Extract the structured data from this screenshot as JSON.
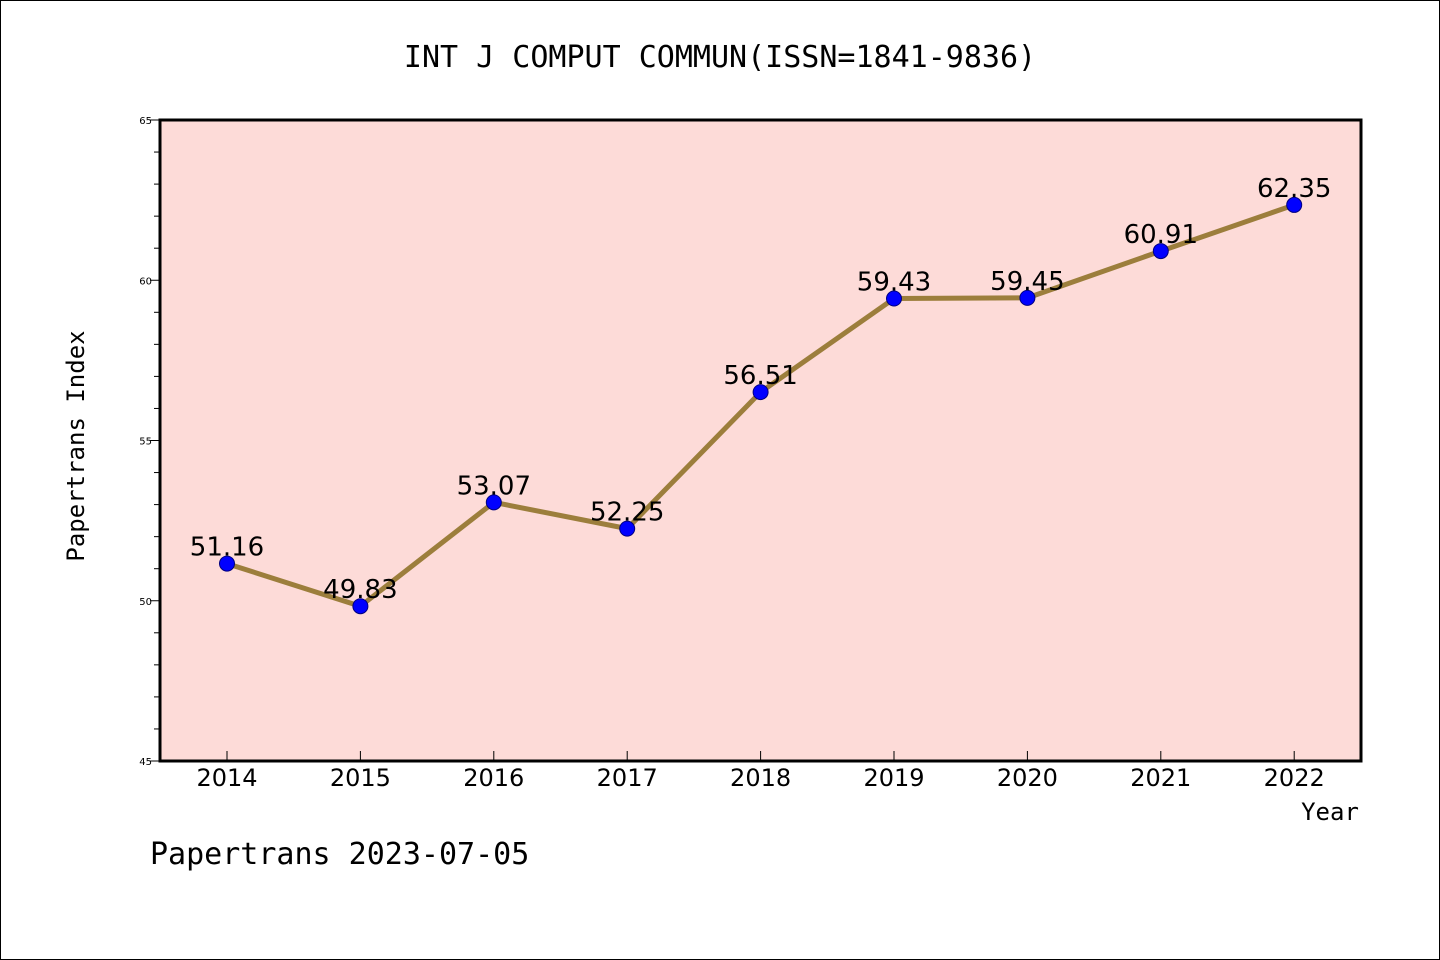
{
  "chart_data": {
    "type": "line",
    "title": "INT J COMPUT COMMUN(ISSN=1841-9836)",
    "xlabel": "Year",
    "ylabel": "Papertrans Index",
    "categories": [
      "2014",
      "2015",
      "2016",
      "2017",
      "2018",
      "2019",
      "2020",
      "2021",
      "2022"
    ],
    "values": [
      51.16,
      49.83,
      53.07,
      52.25,
      56.51,
      59.43,
      59.45,
      60.91,
      62.35
    ],
    "value_labels": [
      "51.16",
      "49.83",
      "53.07",
      "52.25",
      "56.51",
      "59.43",
      "59.45",
      "60.91",
      "62.35"
    ],
    "ylim": [
      45,
      65
    ],
    "yticks": [
      "45",
      "50",
      "55",
      "60",
      "65"
    ],
    "grid": false,
    "legend": "none",
    "colors": {
      "plot_background": "#fddbd8",
      "line": "#9c7e3c",
      "marker_fill": "#0000ff",
      "marker_edge": "#000080"
    }
  },
  "footer": "Papertrans 2023-07-05"
}
